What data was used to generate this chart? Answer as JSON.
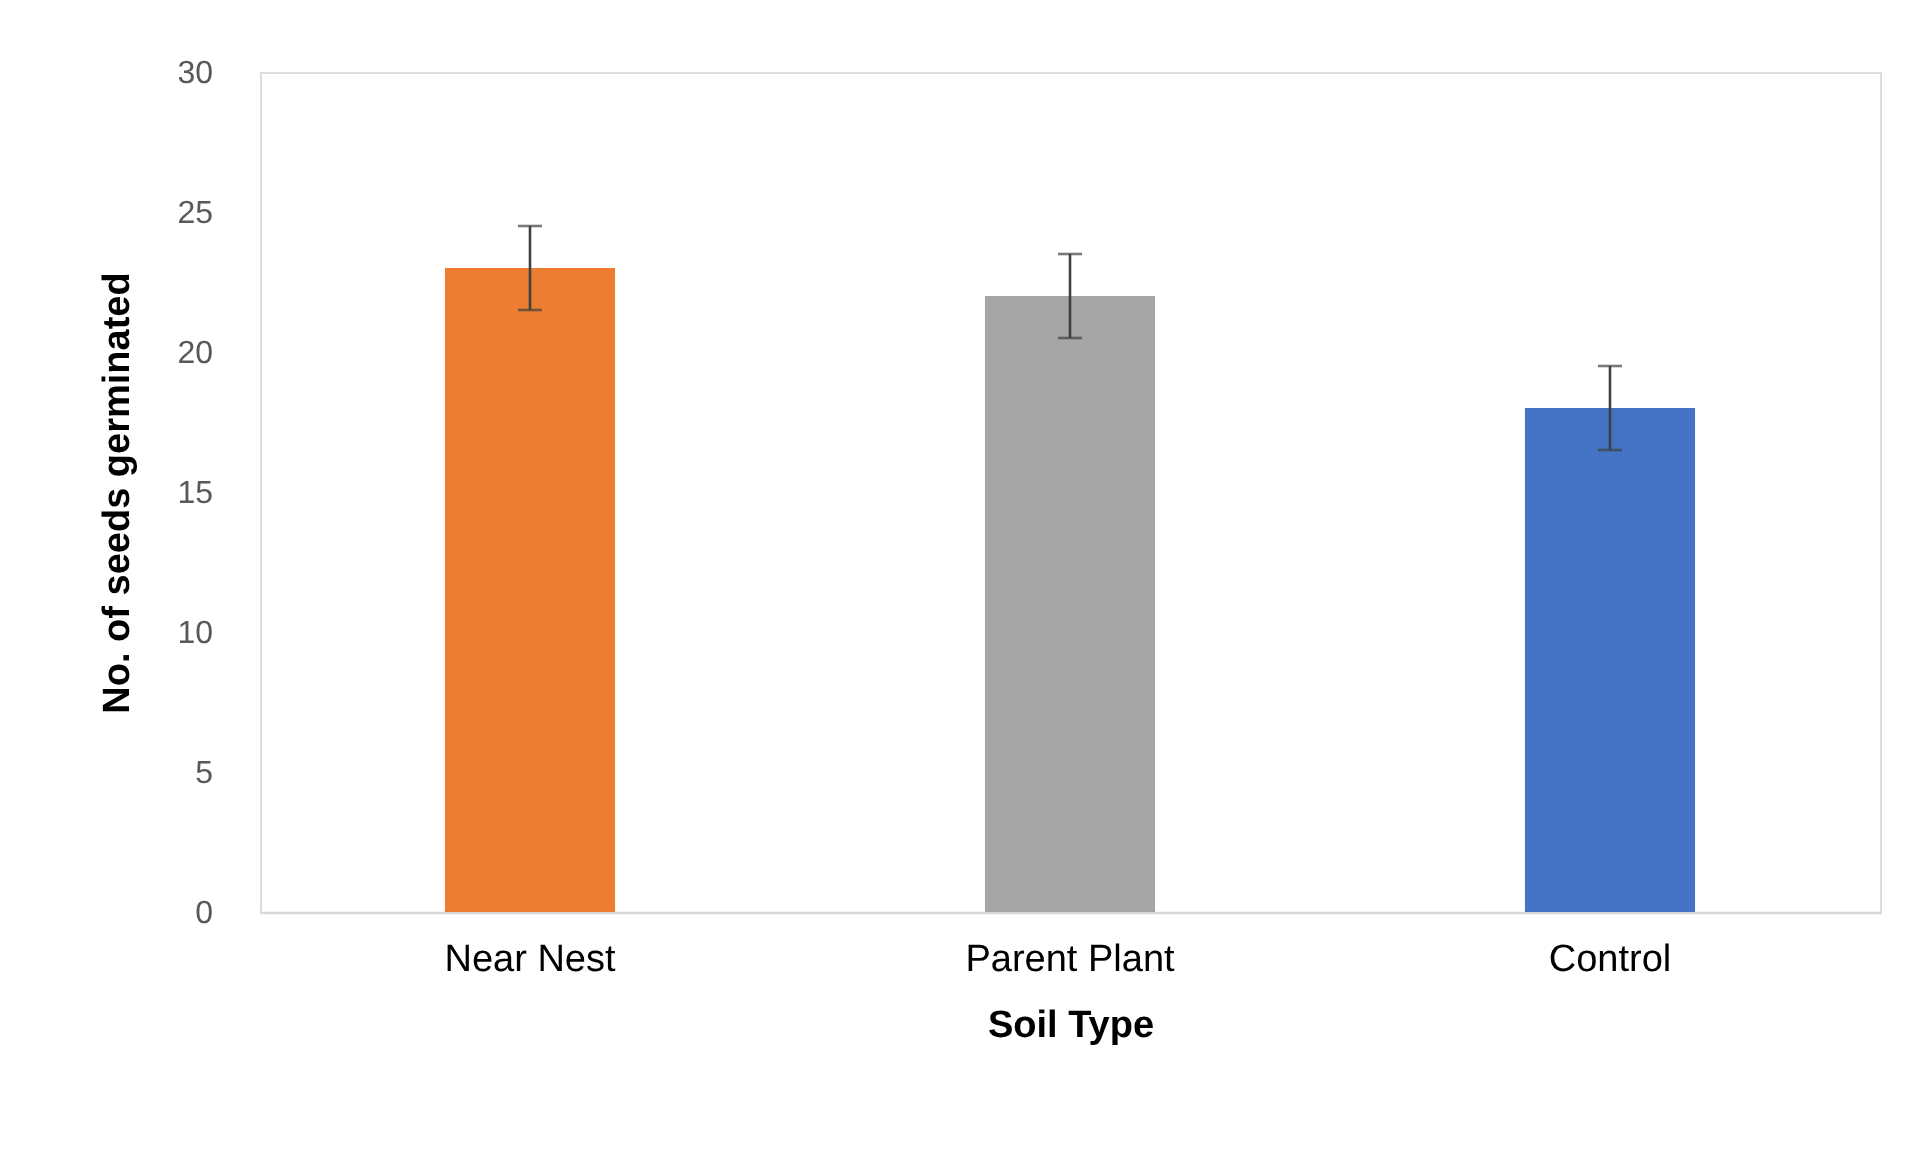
{
  "chart_data": {
    "type": "bar",
    "xlabel": "Soil Type",
    "ylabel": "No. of seeds germinated",
    "categories": [
      "Near Nest",
      "Parent Plant",
      "Control"
    ],
    "values": [
      23,
      22,
      18
    ],
    "errors": [
      1.5,
      1.5,
      1.5
    ],
    "colors": [
      "#ed7d31",
      "#a5a5a5",
      "#4472c4"
    ],
    "ylim": [
      0,
      30
    ],
    "yticks": [
      0,
      5,
      10,
      15,
      20,
      25,
      30
    ],
    "grid": false
  }
}
